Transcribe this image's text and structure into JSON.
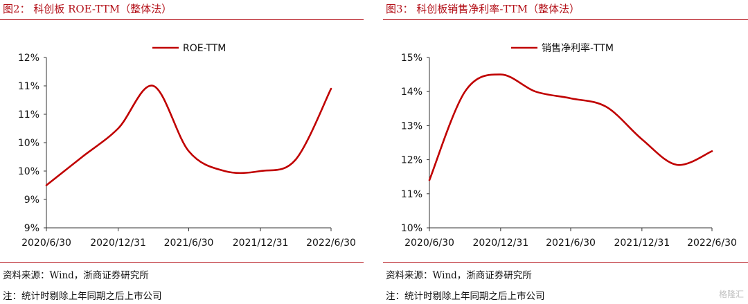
{
  "charts": {
    "left": {
      "title": "图2：  科创板  ROE-TTM（整体法）",
      "source": "资料来源：Wind，浙商证券研究所",
      "note": "注：统计时剔除上年同期之后上市公司"
    },
    "right": {
      "title": "图3：  科创板销售净利率-TTM（整体法）",
      "source": "资料来源：Wind，浙商证券研究所",
      "note": "注：统计时剔除上年同期之后上市公司"
    }
  },
  "colors": {
    "line": "#c00000",
    "accent": "#b4121a",
    "axis": "#333333"
  },
  "chart_data": [
    {
      "type": "line",
      "title": "",
      "legend_position": "top-center",
      "grid": false,
      "xlabel": "",
      "ylabel": "",
      "x_ticks": [
        "2020/6/30",
        "2020/12/31",
        "2021/6/30",
        "2021/12/31",
        "2022/6/30"
      ],
      "y_ticks": [
        "9%",
        "9%",
        "10%",
        "10%",
        "11%",
        "11%",
        "12%"
      ],
      "ylim": [
        9,
        12
      ],
      "series": [
        {
          "name": "ROE-TTM",
          "x": [
            "2020/6/30",
            "2020/9/30",
            "2020/12/31",
            "2021/3/31",
            "2021/6/30",
            "2021/9/30",
            "2021/12/31",
            "2022/3/31",
            "2022/6/30"
          ],
          "values": [
            9.75,
            10.25,
            10.75,
            11.5,
            10.35,
            10.0,
            10.0,
            10.2,
            11.45
          ]
        }
      ]
    },
    {
      "type": "line",
      "title": "",
      "legend_position": "top-center",
      "grid": false,
      "xlabel": "",
      "ylabel": "",
      "x_ticks": [
        "2020/6/30",
        "2020/12/31",
        "2021/6/30",
        "2021/12/31",
        "2022/6/30"
      ],
      "y_ticks": [
        "10%",
        "11%",
        "12%",
        "13%",
        "14%",
        "15%"
      ],
      "ylim": [
        10,
        15
      ],
      "series": [
        {
          "name": "销售净利率-TTM",
          "x": [
            "2020/6/30",
            "2020/9/30",
            "2020/12/31",
            "2021/3/31",
            "2021/6/30",
            "2021/9/30",
            "2021/12/31",
            "2022/3/31",
            "2022/6/30"
          ],
          "values": [
            11.4,
            14.0,
            14.5,
            14.0,
            13.8,
            13.55,
            12.6,
            11.85,
            12.25
          ]
        }
      ]
    }
  ],
  "watermark": "格隆汇"
}
